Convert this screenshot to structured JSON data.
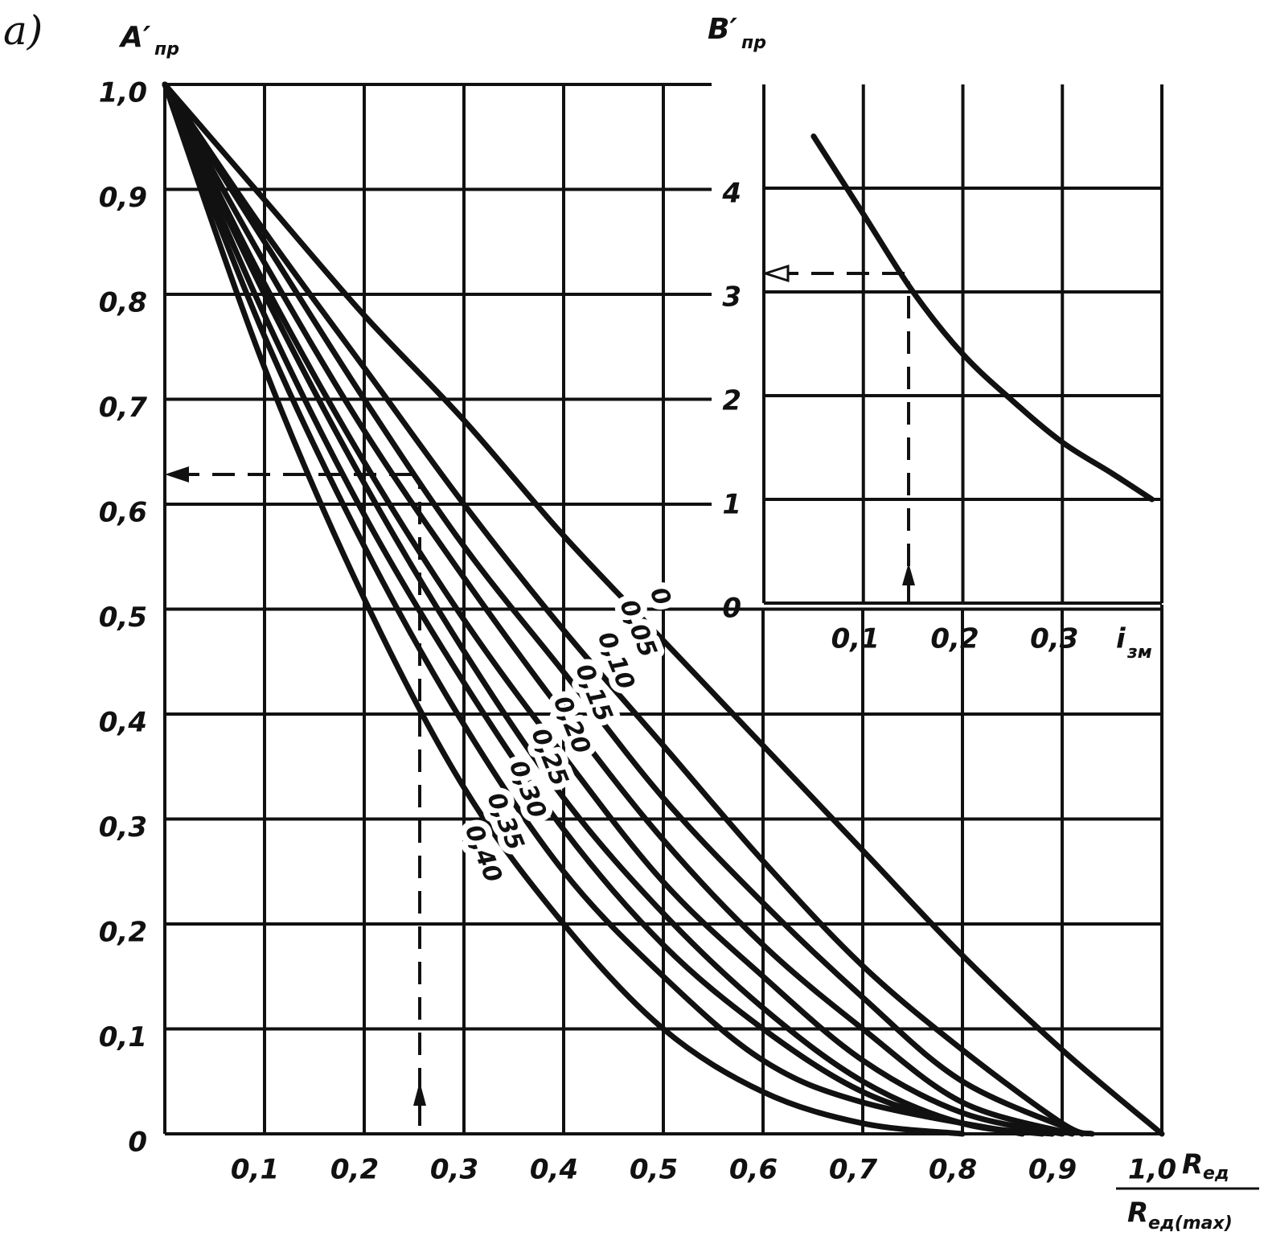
{
  "panel_label": "a)",
  "chart_data": [
    {
      "type": "line",
      "y_label": "A′",
      "y_label_sub": "пр",
      "x_label_numerator": "R",
      "x_label_numerator_sub": "ед",
      "x_label_denominator": "R",
      "x_label_denominator_sub": "ед(max)",
      "xlim": [
        0,
        1
      ],
      "ylim": [
        0,
        1
      ],
      "xticks": [
        {
          "value": 0.1,
          "label": "0,1"
        },
        {
          "value": 0.2,
          "label": "0,2"
        },
        {
          "value": 0.3,
          "label": "0,3"
        },
        {
          "value": 0.4,
          "label": "0,4"
        },
        {
          "value": 0.5,
          "label": "0,5"
        },
        {
          "value": 0.6,
          "label": "0,6"
        },
        {
          "value": 0.7,
          "label": "0,7"
        },
        {
          "value": 0.8,
          "label": "0,8"
        },
        {
          "value": 0.9,
          "label": "0,9"
        },
        {
          "value": 1.0,
          "label": "1,0"
        }
      ],
      "yticks": [
        0,
        {
          "value": 0.1,
          "label": "0,1"
        },
        {
          "value": 0.2,
          "label": "0,2"
        },
        {
          "value": 0.3,
          "label": "0,3"
        },
        {
          "value": 0.4,
          "label": "0,4"
        },
        {
          "value": 0.5,
          "label": "0,5"
        },
        {
          "value": 0.6,
          "label": "0,6"
        },
        {
          "value": 0.7,
          "label": "0,7"
        },
        {
          "value": 0.8,
          "label": "0,8"
        },
        {
          "value": 0.9,
          "label": "0,9"
        },
        {
          "value": 1.0,
          "label": "1,0"
        }
      ],
      "grid": true,
      "color": "#111111",
      "series": [
        {
          "name": "0",
          "x": [
            0,
            0.1,
            0.2,
            0.3,
            0.4,
            0.5,
            0.6,
            0.7,
            0.8,
            0.9,
            1.0
          ],
          "values": [
            1,
            0.89,
            0.78,
            0.68,
            0.57,
            0.47,
            0.37,
            0.27,
            0.17,
            0.08,
            0
          ]
        },
        {
          "name": "0,05",
          "x": [
            0,
            0.1,
            0.2,
            0.3,
            0.4,
            0.5,
            0.6,
            0.7,
            0.8,
            0.9,
            0.93
          ],
          "values": [
            1,
            0.86,
            0.73,
            0.6,
            0.48,
            0.37,
            0.26,
            0.16,
            0.08,
            0.01,
            0
          ]
        },
        {
          "name": "0,10",
          "x": [
            0,
            0.1,
            0.2,
            0.3,
            0.4,
            0.5,
            0.6,
            0.7,
            0.8,
            0.92
          ],
          "values": [
            1,
            0.85,
            0.7,
            0.56,
            0.44,
            0.32,
            0.22,
            0.13,
            0.05,
            0
          ]
        },
        {
          "name": "0,15",
          "x": [
            0,
            0.1,
            0.2,
            0.3,
            0.4,
            0.5,
            0.6,
            0.7,
            0.8,
            0.91
          ],
          "values": [
            1,
            0.83,
            0.67,
            0.53,
            0.4,
            0.28,
            0.18,
            0.1,
            0.03,
            0
          ]
        },
        {
          "name": "0,20",
          "x": [
            0,
            0.1,
            0.2,
            0.3,
            0.4,
            0.5,
            0.6,
            0.7,
            0.8,
            0.9
          ],
          "values": [
            1,
            0.81,
            0.64,
            0.49,
            0.36,
            0.24,
            0.15,
            0.07,
            0.02,
            0
          ]
        },
        {
          "name": "0,25",
          "x": [
            0,
            0.1,
            0.2,
            0.3,
            0.4,
            0.5,
            0.6,
            0.7,
            0.8,
            0.89
          ],
          "values": [
            1,
            0.8,
            0.62,
            0.46,
            0.32,
            0.21,
            0.12,
            0.05,
            0.01,
            0
          ]
        },
        {
          "name": "0,30",
          "x": [
            0,
            0.1,
            0.2,
            0.3,
            0.4,
            0.5,
            0.6,
            0.7,
            0.8,
            0.88
          ],
          "values": [
            1,
            0.78,
            0.59,
            0.43,
            0.29,
            0.18,
            0.1,
            0.04,
            0.01,
            0
          ]
        },
        {
          "name": "0,35",
          "x": [
            0,
            0.1,
            0.2,
            0.3,
            0.4,
            0.5,
            0.6,
            0.7,
            0.86
          ],
          "values": [
            1,
            0.76,
            0.56,
            0.39,
            0.25,
            0.15,
            0.07,
            0.03,
            0
          ]
        },
        {
          "name": "0,40",
          "x": [
            0,
            0.1,
            0.2,
            0.3,
            0.4,
            0.5,
            0.6,
            0.7,
            0.8
          ],
          "values": [
            1,
            0.73,
            0.51,
            0.33,
            0.2,
            0.1,
            0.04,
            0.01,
            0
          ]
        }
      ]
    },
    {
      "type": "line",
      "y_label": "B′",
      "y_label_sub": "пр",
      "x_label": "i",
      "x_label_sub": "зм",
      "xlim": [
        0,
        0.4
      ],
      "ylim": [
        0,
        5
      ],
      "xticks": [
        {
          "value": 0.1,
          "label": "0,1"
        },
        {
          "value": 0.2,
          "label": "0,2"
        },
        {
          "value": 0.3,
          "label": "0,3"
        }
      ],
      "yticks": [
        0,
        1,
        2,
        3,
        4
      ],
      "grid": true,
      "color": "#111111",
      "series": [
        {
          "x": [
            0.05,
            0.1,
            0.15,
            0.2,
            0.25,
            0.3,
            0.35,
            0.39
          ],
          "values": [
            4.5,
            3.75,
            3.0,
            2.4,
            1.95,
            1.55,
            1.25,
            1.0
          ]
        }
      ]
    }
  ]
}
